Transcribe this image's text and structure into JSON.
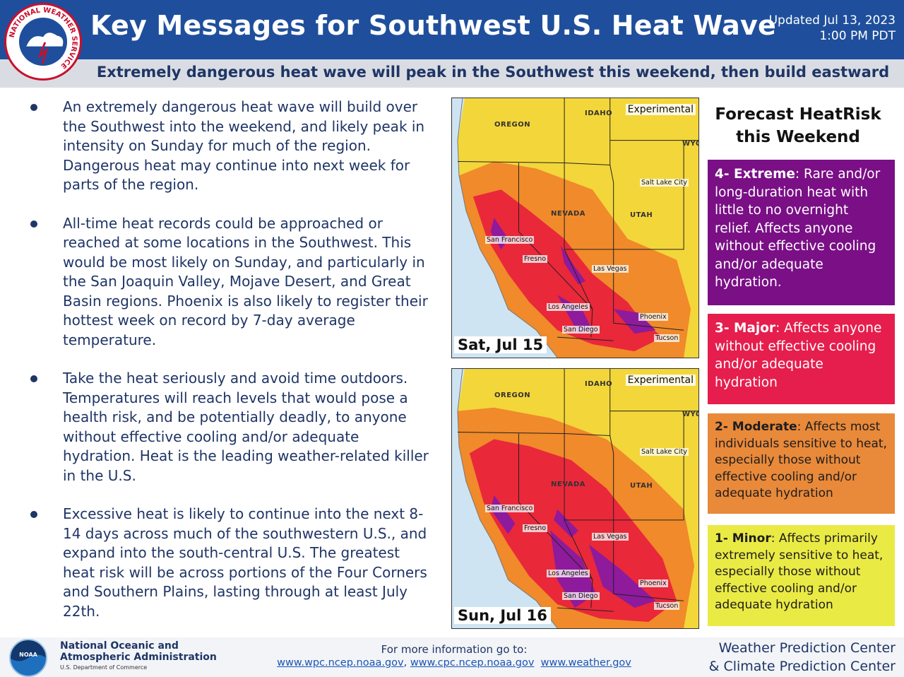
{
  "header": {
    "title": "Key Messages for Southwest U.S. Heat Wave",
    "updated_line1": "Updated Jul 13, 2023",
    "updated_line2": "1:00 PM PDT",
    "logo_text": "NATIONAL WEATHER SERVICE"
  },
  "subtitle": "Extremely dangerous heat wave will peak in the Southwest this weekend, then build eastward",
  "bullets": [
    "An extremely dangerous heat wave will build over the Southwest into the weekend, and likely peak in intensity on Sunday for much of the region. Dangerous heat may continue into next week for parts of the region.",
    "All-time heat records could be approached or reached at some locations in the Southwest. This would be most likely on Sunday, and particularly in the San Joaquin Valley, Mojave Desert, and Great Basin regions. Phoenix is also likely to register their hottest week on record by 7-day average temperature.",
    "Take the heat seriously and avoid time outdoors. Temperatures will reach levels that would pose a health risk, and be potentially deadly, to anyone without effective cooling and/or adequate hydration. Heat is the leading weather-related killer in the U.S.",
    "Excessive heat is likely to continue into the next 8-14 days across much of the southwestern U.S., and expand into the south-central U.S. The greatest heat risk will be across portions of the Four Corners and Southern Plains, lasting through at least July 22th."
  ],
  "maps": [
    {
      "date": "Sat, Jul 15",
      "experimental": "Experimental",
      "states": [
        "OREGON",
        "IDAHO",
        "WYO",
        "NEVADA",
        "UTAH"
      ],
      "cities": [
        "Salt Lake City",
        "San Francisco",
        "Fresno",
        "Las Vegas",
        "Los Angeles",
        "San Diego",
        "Phoenix",
        "Tucson"
      ]
    },
    {
      "date": "Sun, Jul 16",
      "experimental": "Experimental",
      "states": [
        "OREGON",
        "IDAHO",
        "WYO",
        "NEVADA",
        "UTAH"
      ],
      "cities": [
        "Salt Lake City",
        "San Francisco",
        "Fresno",
        "Las Vegas",
        "Los Angeles",
        "San Diego",
        "Phoenix",
        "Tucson"
      ]
    }
  ],
  "legend": {
    "title_line1": "Forecast HeatRisk",
    "title_line2": "this Weekend",
    "levels": [
      {
        "label": "4- Extreme",
        "text": ": Rare and/or long-duration heat with little to no overnight relief. Affects anyone without effective cooling and/or adequate hydration.",
        "color": "#7a0f86"
      },
      {
        "label": "3- Major",
        "text": ": Affects anyone without effective cooling and/or adequate hydration",
        "color": "#e61e4d"
      },
      {
        "label": "2- Moderate",
        "text": ": Affects most individuals sensitive to heat, especially those without effective cooling and/or adequate hydration",
        "color": "#e9893a"
      },
      {
        "label": "1- Minor",
        "text": ": Affects primarily extremely sensitive to heat, especially those without effective cooling and/or adequate hydration",
        "color": "#eaea45"
      }
    ]
  },
  "footer": {
    "noaa_line1": "National Oceanic and",
    "noaa_line2": "Atmospheric Administration",
    "noaa_dept": "U.S. Department of Commerce",
    "noaa_logo_text": "NOAA",
    "more_info": "For more information go to:",
    "links": [
      "www.wpc.ncep.noaa.gov",
      "www.cpc.ncep.noaa.gov",
      "www.weather.gov"
    ],
    "link_separator": ",",
    "center_line1": "Weather Prediction Center",
    "center_line2": "& Climate Prediction Center"
  }
}
